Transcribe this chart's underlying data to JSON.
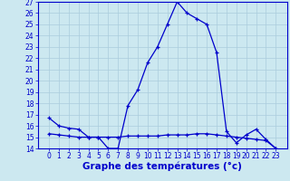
{
  "title": "Graphe des températures (°c)",
  "hours": [
    0,
    1,
    2,
    3,
    4,
    5,
    6,
    7,
    8,
    9,
    10,
    11,
    12,
    13,
    14,
    15,
    16,
    17,
    18,
    19,
    20,
    21,
    22,
    23
  ],
  "temp1": [
    16.7,
    16.0,
    15.8,
    15.7,
    15.0,
    15.0,
    14.0,
    14.0,
    17.8,
    19.2,
    21.6,
    23.0,
    25.0,
    27.0,
    26.0,
    25.5,
    25.0,
    22.5,
    15.5,
    14.5,
    15.2,
    15.7,
    14.8,
    14.0
  ],
  "temp2": [
    15.3,
    15.2,
    15.1,
    15.0,
    15.0,
    15.0,
    15.0,
    15.0,
    15.1,
    15.1,
    15.1,
    15.1,
    15.2,
    15.2,
    15.2,
    15.3,
    15.3,
    15.2,
    15.1,
    15.0,
    14.9,
    14.8,
    14.7,
    14.0
  ],
  "ylim": [
    14,
    27
  ],
  "yticks": [
    14,
    15,
    16,
    17,
    18,
    19,
    20,
    21,
    22,
    23,
    24,
    25,
    26,
    27
  ],
  "line_color": "#0000cc",
  "bg_color": "#cce8f0",
  "grid_color": "#aaccdd",
  "xlabel_fontsize": 7.5,
  "tick_fontsize": 5.5
}
